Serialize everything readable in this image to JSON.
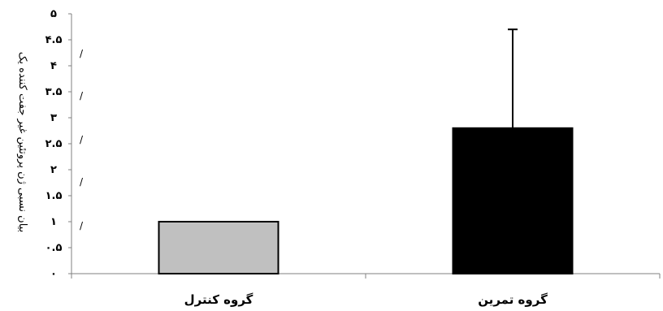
{
  "chart_data": {
    "type": "bar",
    "categories": [
      "گروه کنترل",
      "گروه تمرین"
    ],
    "values": [
      1.0,
      2.8
    ],
    "error_upper": [
      null,
      4.7
    ],
    "bar_colors": [
      "#c0c0c0",
      "#000000"
    ],
    "ylim": [
      0,
      5
    ],
    "yticks": [
      0,
      0.5,
      1,
      1.5,
      2,
      2.5,
      3,
      3.5,
      4,
      4.5,
      5
    ],
    "ytick_labels": [
      "۰",
      "۰.۵",
      "۱",
      "۱.۵",
      "۲",
      "۲.۵",
      "۳",
      "۳.۵",
      "۴",
      "۴.۵",
      "۵"
    ],
    "ylabel": "بیان نسبی ژن پروتئین غیر جفت کننده یک",
    "ylabel_marks": [
      "/",
      "/",
      "/",
      "/",
      "/"
    ],
    "grid": false
  }
}
